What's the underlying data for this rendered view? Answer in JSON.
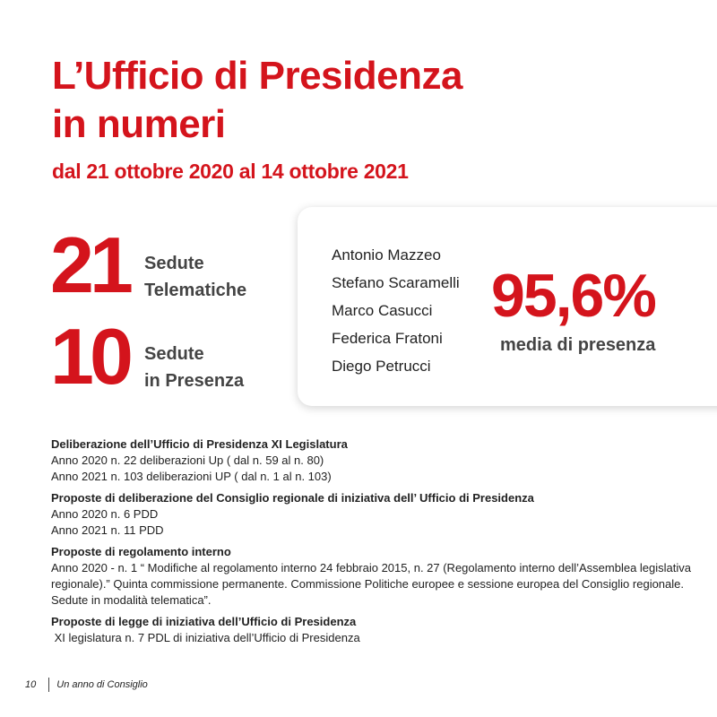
{
  "header": {
    "title_line1": "L’Ufficio di Presidenza",
    "title_line2": "in numeri",
    "subtitle": "dal 21 ottobre 2020 al 14 ottobre 2021"
  },
  "stats": [
    {
      "value": "21",
      "label_line1": "Sedute",
      "label_line2": "Telematiche"
    },
    {
      "value": "10",
      "label_line1": "Sedute",
      "label_line2": "in Presenza"
    }
  ],
  "card": {
    "members": [
      "Antonio Mazzeo",
      "Stefano Scaramelli",
      "Marco Casucci",
      "Federica Fratoni",
      "Diego Petrucci"
    ],
    "percentage": "95,6%",
    "percentage_label": "media di presenza"
  },
  "sections": [
    {
      "heading": "Deliberazione dell’Ufficio di Presidenza XI Legislatura",
      "lines": [
        "Anno 2020 n. 22 deliberazioni Up ( dal n. 59 al n. 80)",
        "Anno 2021 n. 103 deliberazioni UP ( dal n. 1 al n. 103)"
      ]
    },
    {
      "heading": "Proposte di deliberazione  del Consiglio regionale di iniziativa dell’ Ufficio di Presidenza",
      "lines": [
        "Anno 2020 n. 6 PDD",
        "Anno 2021 n. 11 PDD"
      ]
    },
    {
      "heading": "Proposte di regolamento interno",
      "lines": [
        "Anno 2020  - n. 1 “ Modifiche al regolamento interno 24 febbraio 2015, n. 27 (Regolamento interno dell’Assemblea legislativa regionale).” Quinta commissione permanente. Commissione Politiche europee e sessione europea del Consiglio regionale.  Sedute in modalità telematica”."
      ]
    },
    {
      "heading": "Proposte di legge di iniziativa dell’Ufficio di Presidenza",
      "lines": [
        " XI legislatura n. 7 PDL di iniziativa dell’Ufficio di Presidenza"
      ]
    }
  ],
  "footer": {
    "page_number": "10",
    "publication": "Un anno di Consiglio"
  },
  "colors": {
    "accent": "#d4141c",
    "label_gray": "#444444"
  }
}
